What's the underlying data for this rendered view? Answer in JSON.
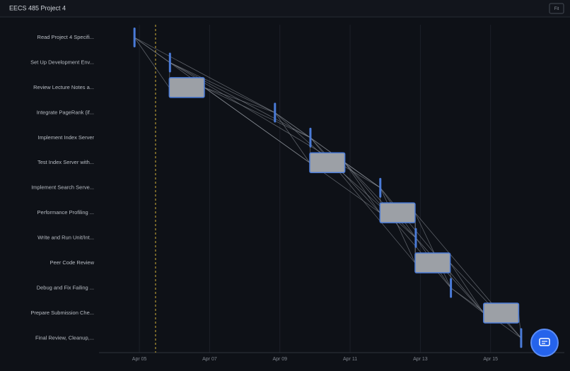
{
  "fit_button": "Fit",
  "chart_data": {
    "type": "gantt",
    "title": "EECS 485 Project 4",
    "tasks": [
      {
        "name": "Read Project 4 Specifi...",
        "start": 4.86,
        "end": 4.86
      },
      {
        "name": "Set Up Development Env...",
        "start": 5.87,
        "end": 5.87
      },
      {
        "name": "Review Lecture Notes a...",
        "start": 5.85,
        "end": 6.85
      },
      {
        "name": "Integrate PageRank (if...",
        "start": 8.86,
        "end": 8.86
      },
      {
        "name": "Implement Index Server",
        "start": 9.87,
        "end": 9.87
      },
      {
        "name": "Test Index Server with...",
        "start": 9.85,
        "end": 10.85
      },
      {
        "name": "Implement Search Serve...",
        "start": 11.86,
        "end": 11.86
      },
      {
        "name": "Performance Profiling ...",
        "start": 11.85,
        "end": 12.85
      },
      {
        "name": "Write and Run Unit/Int...",
        "start": 12.87,
        "end": 12.87
      },
      {
        "name": "Peer Code Review",
        "start": 12.85,
        "end": 13.85
      },
      {
        "name": "Debug and Fix Failing ...",
        "start": 13.87,
        "end": 13.87
      },
      {
        "name": "Prepare Submission Che...",
        "start": 14.8,
        "end": 15.8
      },
      {
        "name": "Final Review, Cleanup,...",
        "start": 15.87,
        "end": 15.87
      }
    ],
    "today": 5.46,
    "xlim": [
      3.85,
      17.1
    ],
    "xticks": [
      {
        "value": 5,
        "label": "Apr 05"
      },
      {
        "value": 7,
        "label": "Apr 07"
      },
      {
        "value": 9,
        "label": "Apr 09"
      },
      {
        "value": 11,
        "label": "Apr 11"
      },
      {
        "value": 13,
        "label": "Apr 13"
      },
      {
        "value": 15,
        "label": "Apr 15"
      }
    ],
    "bar_color": "#9ca0a6",
    "milestone_color": "#4a7bd8",
    "grid": true
  }
}
